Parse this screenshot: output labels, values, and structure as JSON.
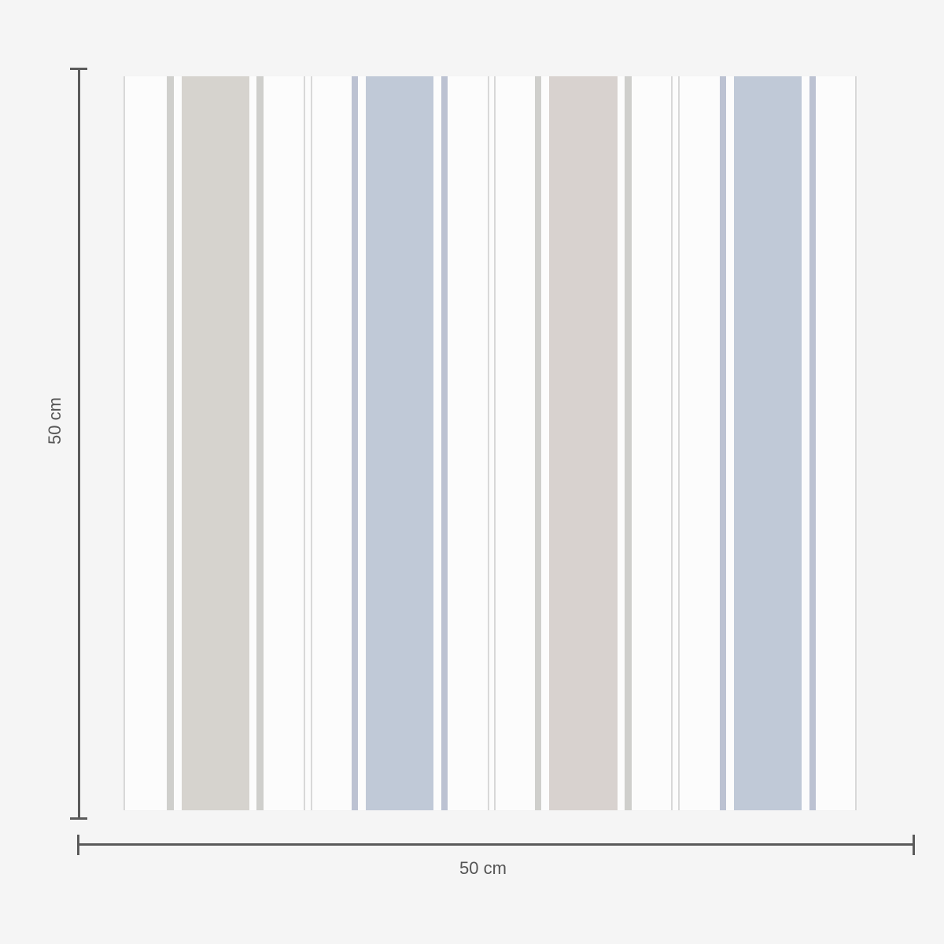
{
  "dimensions": {
    "height_label": "50 cm",
    "width_label": "50 cm"
  },
  "colors": {
    "background": "#f5f5f5",
    "paper": "#fcfcfc",
    "beige": "#d6d3ce",
    "beige_pink": "#d8d2cf",
    "blue": "#c0c9d7",
    "thin_gray": "#cfcfcc",
    "thin_blue": "#bcc2d2",
    "hairline": "#d8d8d8",
    "dimension_line": "#5a5a5a"
  }
}
